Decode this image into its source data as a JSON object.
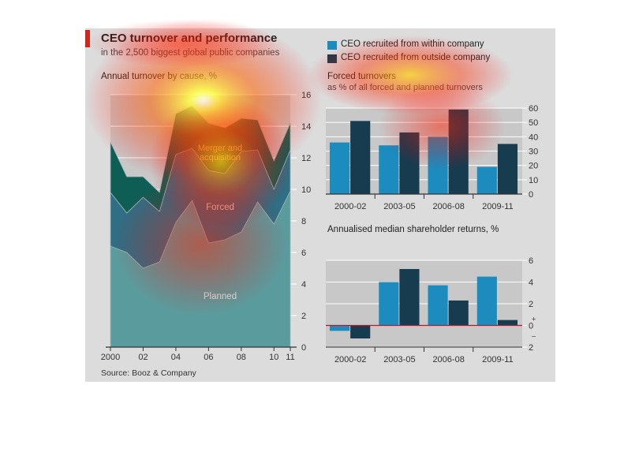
{
  "figure": {
    "title": "CEO turnover and performance",
    "subtitle": "in the 2,500 biggest global public companies",
    "source": "Source: Booz & Company",
    "colors": {
      "within": "#1c8bbd",
      "outside": "#173b4f",
      "merger": "#0e5e55",
      "forced": "#2f6e84",
      "planned": "#5a9c9e",
      "background": "#dcdcdc",
      "plot_bg": "#c9c9c9",
      "zero_line": "#c8102e"
    }
  },
  "legend": {
    "within": "CEO recruited from within company",
    "outside": "CEO recruited from outside company"
  },
  "chart_data": [
    {
      "type": "area",
      "title": "Annual turnover by cause, %",
      "x": [
        2000,
        2001,
        2002,
        2003,
        2004,
        2005,
        2006,
        2007,
        2008,
        2009,
        2010,
        2011
      ],
      "x_tick_labels": [
        "2000",
        "02",
        "04",
        "06",
        "08",
        "10",
        "11"
      ],
      "x_tick_values": [
        2000,
        2002,
        2004,
        2006,
        2008,
        2010,
        2011
      ],
      "ylim": [
        0,
        16
      ],
      "y_ticks": [
        0,
        2,
        4,
        6,
        8,
        10,
        12,
        14,
        16
      ],
      "stacked": true,
      "series": [
        {
          "name": "Planned",
          "values": [
            6.4,
            6.0,
            5.0,
            5.4,
            7.9,
            9.3,
            6.6,
            6.8,
            7.3,
            9.2,
            7.8,
            9.9
          ]
        },
        {
          "name": "Forced",
          "values": [
            3.4,
            2.5,
            4.5,
            3.2,
            4.3,
            3.3,
            4.6,
            4.2,
            5.1,
            3.3,
            2.2,
            2.6
          ]
        },
        {
          "name": "Merger and acquisition",
          "values": [
            3.2,
            2.3,
            1.3,
            1.2,
            2.6,
            2.7,
            3.0,
            2.9,
            2.1,
            1.9,
            1.8,
            1.7
          ]
        }
      ],
      "grid": true
    },
    {
      "type": "bar",
      "title": "Forced turnovers",
      "subtitle": "as % of all forced and planned turnovers",
      "categories": [
        "2000-02",
        "2003-05",
        "2006-08",
        "2009-11"
      ],
      "series": [
        {
          "name": "CEO recruited from within company",
          "values": [
            36,
            34,
            40,
            19
          ]
        },
        {
          "name": "CEO recruited from outside company",
          "values": [
            51,
            43,
            59,
            35
          ]
        }
      ],
      "ylim": [
        0,
        60
      ],
      "y_ticks": [
        0,
        10,
        20,
        30,
        40,
        50,
        60
      ],
      "grid": true
    },
    {
      "type": "bar",
      "title": "Annualised median shareholder returns, %",
      "categories": [
        "2000-02",
        "2003-05",
        "2006-08",
        "2009-11"
      ],
      "series": [
        {
          "name": "CEO recruited from within company",
          "values": [
            -0.5,
            4.0,
            3.7,
            4.5
          ]
        },
        {
          "name": "CEO recruited from outside company",
          "values": [
            -1.2,
            5.2,
            2.3,
            0.5
          ]
        }
      ],
      "ylim": [
        -2,
        6
      ],
      "y_ticks": [
        -2,
        0,
        2,
        4,
        6
      ],
      "y_tick_labels": [
        "2",
        "0",
        "2",
        "4",
        "6"
      ],
      "sign_markers": {
        "plus": "+",
        "minus": "–"
      },
      "grid": true
    }
  ]
}
